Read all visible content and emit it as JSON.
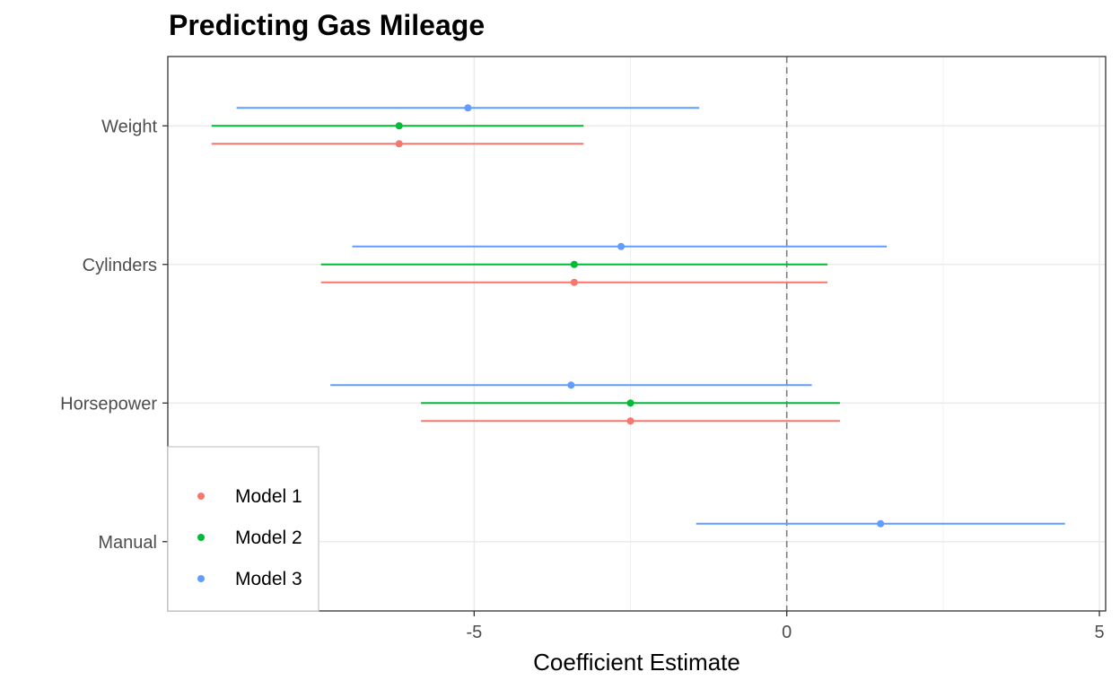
{
  "chart_data": {
    "type": "scatter",
    "title": "Predicting Gas Mileage",
    "xlabel": "Coefficient Estimate",
    "ylabel": "",
    "xlim": [
      -9.9,
      5.1
    ],
    "x_ticks": [
      -5,
      0,
      5
    ],
    "x_tick_labels": [
      "-5",
      "0",
      "5"
    ],
    "categories": [
      "Weight",
      "Cylinders",
      "Horsepower",
      "Manual"
    ],
    "reference_line": {
      "x": 0,
      "style": "dashed"
    },
    "grid": true,
    "legend_position": "bottom-left",
    "series": [
      {
        "name": "Model 1",
        "color": "#F8766D",
        "points": [
          {
            "term": "Weight",
            "estimate": -6.2,
            "low": -9.2,
            "high": -3.25
          },
          {
            "term": "Cylinders",
            "estimate": -3.4,
            "low": -7.45,
            "high": 0.65
          },
          {
            "term": "Horsepower",
            "estimate": -2.5,
            "low": -5.85,
            "high": 0.85
          }
        ]
      },
      {
        "name": "Model 2",
        "color": "#00BA38",
        "points": [
          {
            "term": "Weight",
            "estimate": -6.2,
            "low": -9.2,
            "high": -3.25
          },
          {
            "term": "Cylinders",
            "estimate": -3.4,
            "low": -7.45,
            "high": 0.65
          },
          {
            "term": "Horsepower",
            "estimate": -2.5,
            "low": -5.85,
            "high": 0.85
          }
        ]
      },
      {
        "name": "Model 3",
        "color": "#619CFF",
        "points": [
          {
            "term": "Weight",
            "estimate": -5.1,
            "low": -8.8,
            "high": -1.4
          },
          {
            "term": "Cylinders",
            "estimate": -2.65,
            "low": -6.95,
            "high": 1.6
          },
          {
            "term": "Horsepower",
            "estimate": -3.45,
            "low": -7.3,
            "high": 0.4
          },
          {
            "term": "Manual",
            "estimate": 1.5,
            "low": -1.45,
            "high": 4.45
          }
        ]
      }
    ]
  }
}
